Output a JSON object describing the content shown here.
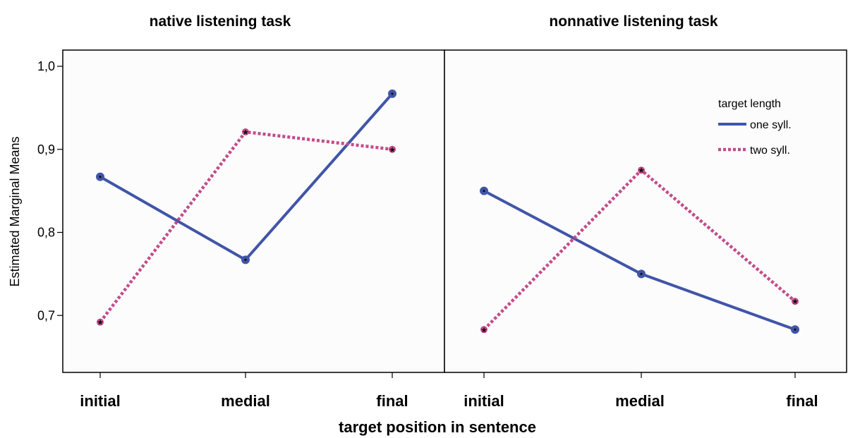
{
  "chart_data": {
    "type": "line",
    "xlabel": "target position in sentence",
    "ylabel": "Estimated Marginal Means",
    "ylim": [
      0.62,
      1.02
    ],
    "yticks": [
      0.7,
      0.8,
      0.9,
      1.0
    ],
    "ytick_labels": [
      "0,7",
      "0,8",
      "0,9",
      "1,0"
    ],
    "categories": [
      "initial",
      "medial",
      "final"
    ],
    "grid": false,
    "legend": {
      "title": "target length",
      "placement": "top-right of right panel",
      "entries": [
        "one syll.",
        "two syll."
      ]
    },
    "colors": {
      "one syll.": "#4055a8",
      "two syll.": "#c44b8a"
    },
    "panels": [
      {
        "title": "native listening task",
        "series": [
          {
            "name": "one syll.",
            "values": [
              0.867,
              0.767,
              0.967
            ]
          },
          {
            "name": "two syll.",
            "values": [
              0.692,
              0.921,
              0.9
            ]
          }
        ]
      },
      {
        "title": "nonnative listening task",
        "series": [
          {
            "name": "one syll.",
            "values": [
              0.85,
              0.75,
              0.683
            ]
          },
          {
            "name": "two syll.",
            "values": [
              0.683,
              0.875,
              0.717
            ]
          }
        ]
      }
    ]
  }
}
